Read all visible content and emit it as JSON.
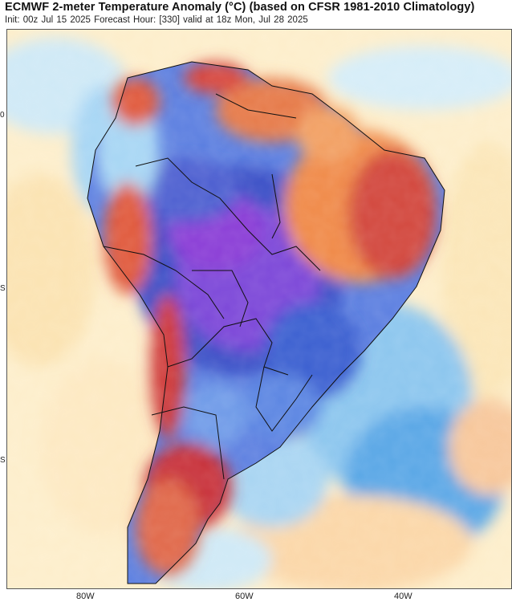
{
  "header": {
    "title": "ECMWF 2-meter Temperature Anomaly (°C) (based on CFSR 1981-2010 Climatology)",
    "subtitle": "Init: 00z Jul 15 2025   Forecast Hour: [330]   valid at 18z Mon, Jul 28 2025"
  },
  "axes": {
    "lon_labels": [
      "80W",
      "60W",
      "40W"
    ],
    "lat_ticks": [
      "0",
      "S",
      "S"
    ]
  },
  "colors": {
    "ocean_warm_light": "#fbe6b8",
    "ocean_cool_light": "#cfe9f6",
    "cool_mid": "#5aa7e6",
    "cold_deep": "#2b3fb8",
    "coldest": "#8a3ed6",
    "warm_orange": "#f08a4a",
    "warm_red": "#c8323a",
    "border_line": "#111111"
  }
}
